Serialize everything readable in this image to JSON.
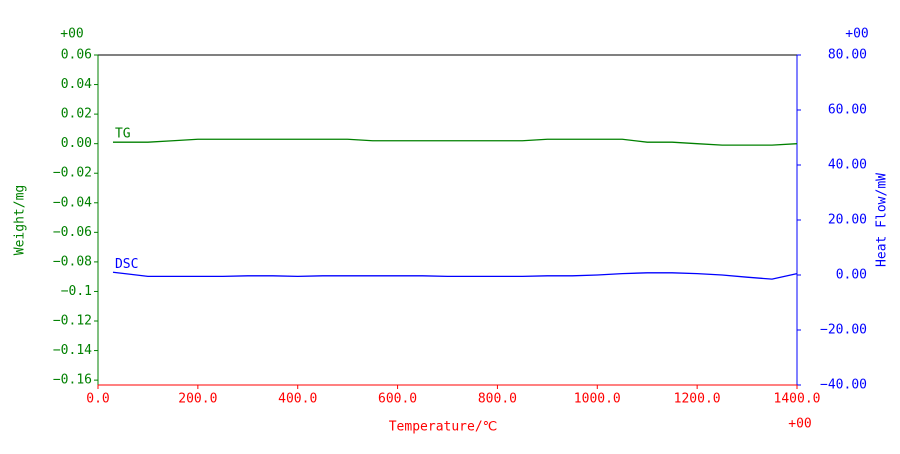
{
  "chart_data": {
    "type": "line",
    "x_label": "Temperature/℃",
    "y_label": "Weight/mg",
    "y2_label": "Heat Flow/mW",
    "x_exponent": "+00",
    "y_exponent": "+00",
    "y2_exponent": "+00",
    "x": [
      30,
      100,
      150,
      200,
      250,
      300,
      350,
      400,
      450,
      500,
      550,
      600,
      650,
      700,
      750,
      800,
      850,
      900,
      950,
      1000,
      1050,
      1100,
      1150,
      1200,
      1250,
      1300,
      1350,
      1400
    ],
    "series": [
      {
        "name": "TG",
        "color": "#008000",
        "axis": "y",
        "values": [
          0.001,
          0.001,
          0.002,
          0.003,
          0.003,
          0.003,
          0.003,
          0.003,
          0.003,
          0.003,
          0.002,
          0.002,
          0.002,
          0.002,
          0.002,
          0.002,
          0.002,
          0.003,
          0.003,
          0.003,
          0.003,
          0.001,
          0.001,
          0.0,
          -0.001,
          -0.001,
          -0.001,
          0.0
        ]
      },
      {
        "name": "DSC",
        "color": "#0000ff",
        "axis": "y2",
        "values": [
          1.0,
          -0.5,
          -0.5,
          -0.5,
          -0.5,
          -0.3,
          -0.3,
          -0.5,
          -0.3,
          -0.3,
          -0.3,
          -0.3,
          -0.3,
          -0.5,
          -0.5,
          -0.5,
          -0.5,
          -0.3,
          -0.3,
          0,
          0.5,
          0.8,
          0.8,
          0.5,
          0,
          -0.8,
          -1.5,
          0.5
        ]
      }
    ],
    "xlim": [
      0,
      1400
    ],
    "xticks": [
      {
        "value": 0,
        "label": "0.0"
      },
      {
        "value": 200,
        "label": "200.0"
      },
      {
        "value": 400,
        "label": "400.0"
      },
      {
        "value": 600,
        "label": "600.0"
      },
      {
        "value": 800,
        "label": "800.0"
      },
      {
        "value": 1000,
        "label": "1000.0"
      },
      {
        "value": 1200,
        "label": "1200.0"
      },
      {
        "value": 1400,
        "label": "1400.0"
      }
    ],
    "ylim": [
      -0.1633,
      0.06
    ],
    "yticks": [
      0.06,
      0.04,
      0.02,
      {
        "value": 0,
        "label": "0.00"
      },
      {
        "value": -0.02,
        "label": "−0.02"
      },
      {
        "value": -0.04,
        "label": "−0.04"
      },
      {
        "value": -0.06,
        "label": "−0.06"
      },
      {
        "value": -0.08,
        "label": "−0.08"
      },
      {
        "value": -0.1,
        "label": "−0.1"
      },
      {
        "value": -0.12,
        "label": "−0.12"
      },
      {
        "value": -0.14,
        "label": "−0.14"
      },
      {
        "value": -0.16,
        "label": "−0.16"
      }
    ],
    "y2lim": [
      -40,
      80
    ],
    "y2ticks": [
      {
        "value": 80,
        "label": "80.00"
      },
      {
        "value": 60,
        "label": "60.00"
      },
      {
        "value": 40,
        "label": "40.00"
      },
      {
        "value": 20,
        "label": "20.00"
      },
      {
        "value": 0,
        "label": "0.00"
      },
      {
        "value": -20,
        "label": "−20.00"
      },
      {
        "value": -40,
        "label": "−40.00"
      }
    ],
    "x_color": "#ff0000",
    "y_color": "#008000",
    "y2_color": "#0000ff"
  }
}
